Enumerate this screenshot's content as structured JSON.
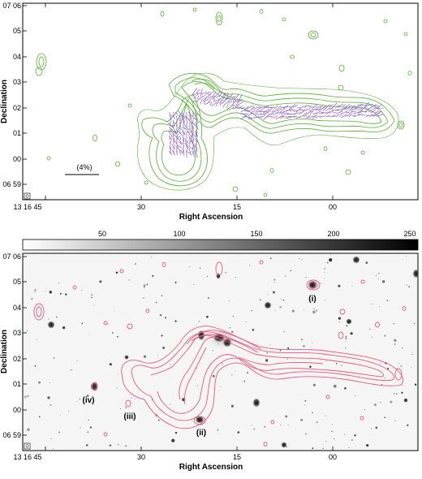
{
  "panels": {
    "top": {
      "ylabel": "Declination",
      "xlabel": "Right Ascension",
      "xticks": [
        "13 16 45",
        "30",
        "15",
        "00"
      ],
      "yticks": [
        "07 06",
        "05",
        "04",
        "03",
        "02",
        "01",
        "00",
        "06 59"
      ],
      "scale_label": "(4%)",
      "contour_color": "#4fae2a",
      "vector_color": "#7a3fc8"
    },
    "bottom": {
      "ylabel": "Declination",
      "xlabel": "Right Ascension",
      "xticks": [
        "13 16 45",
        "30",
        "15",
        "00"
      ],
      "yticks": [
        "07 06",
        "05",
        "04",
        "03",
        "02",
        "01",
        "00",
        "06 59"
      ],
      "colorbar_ticks": [
        "50",
        "100",
        "150",
        "200",
        "250"
      ],
      "contour_color": "#e9587a",
      "sources": [
        "(i)",
        "(ii)",
        "(iii)",
        "(iv)"
      ]
    }
  }
}
